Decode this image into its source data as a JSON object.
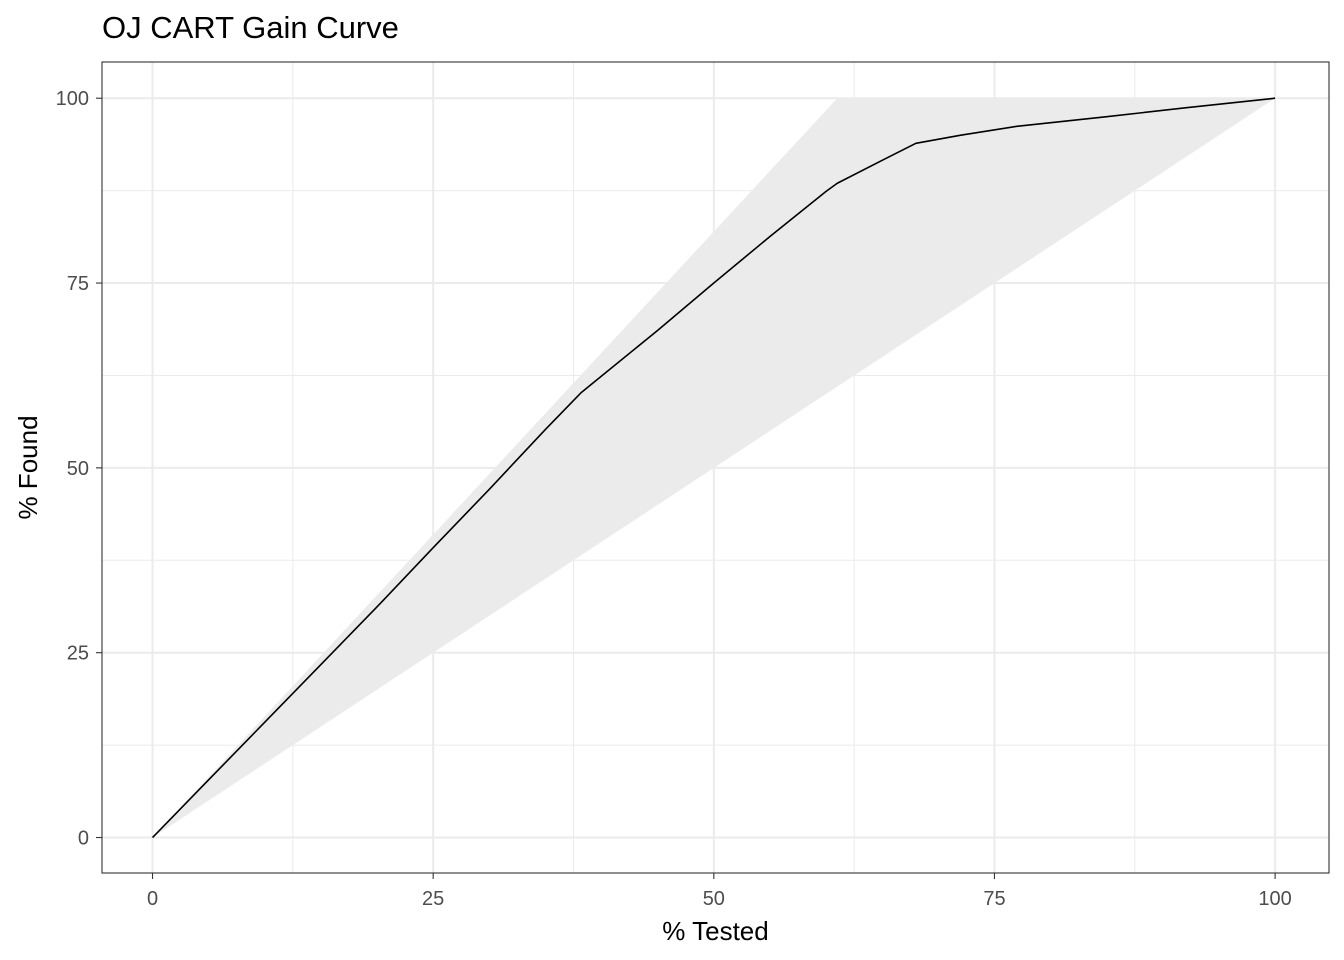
{
  "chart_data": {
    "type": "area",
    "title": "OJ CART Gain Curve",
    "xlabel": "% Tested",
    "ylabel": "% Found",
    "xlim": [
      -4.5,
      104.8
    ],
    "ylim": [
      -4.8,
      104.9
    ],
    "xticks": [
      0,
      25,
      50,
      75,
      100
    ],
    "yticks": [
      0,
      25,
      50,
      75,
      100
    ],
    "grid": true,
    "legend": "none",
    "colors": {
      "line": "#000000",
      "band": "#ebebeb",
      "grid": "#ebebeb",
      "border": "#333333"
    },
    "series": [
      {
        "type": "line",
        "x": [
          0,
          5,
          10,
          15,
          20,
          25,
          30,
          35,
          38.2,
          45,
          50,
          55,
          60,
          61,
          65,
          68,
          72,
          77,
          85,
          92,
          100
        ],
        "y": [
          0,
          7.8,
          15.6,
          23.4,
          31.2,
          39.2,
          47.1,
          55.2,
          60.2,
          68.6,
          75,
          81.3,
          87.4,
          88.5,
          91.6,
          93.9,
          95,
          96.2,
          97.5,
          98.7,
          100
        ]
      },
      {
        "type": "band",
        "x": [
          0,
          61.0,
          100
        ],
        "upper": [
          0,
          100,
          100
        ],
        "lower": [
          0,
          61.0,
          100
        ]
      }
    ]
  }
}
